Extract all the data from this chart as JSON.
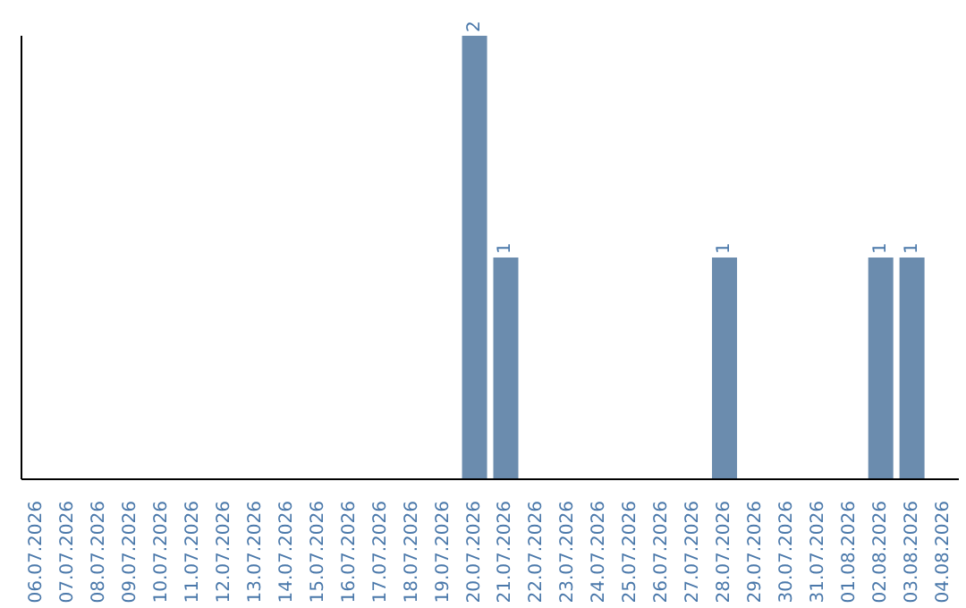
{
  "chart_data": {
    "type": "bar",
    "categories": [
      "06.07.2026",
      "07.07.2026",
      "08.07.2026",
      "09.07.2026",
      "10.07.2026",
      "11.07.2026",
      "12.07.2026",
      "13.07.2026",
      "14.07.2026",
      "15.07.2026",
      "16.07.2026",
      "17.07.2026",
      "18.07.2026",
      "19.07.2026",
      "20.07.2026",
      "21.07.2026",
      "22.07.2026",
      "23.07.2026",
      "24.07.2026",
      "25.07.2026",
      "26.07.2026",
      "27.07.2026",
      "28.07.2026",
      "29.07.2026",
      "30.07.2026",
      "31.07.2026",
      "01.08.2026",
      "02.08.2026",
      "03.08.2026",
      "04.08.2026"
    ],
    "values": [
      null,
      null,
      null,
      null,
      null,
      null,
      null,
      null,
      null,
      null,
      null,
      null,
      null,
      null,
      2,
      1,
      null,
      null,
      null,
      null,
      null,
      null,
      1,
      null,
      null,
      null,
      null,
      1,
      1,
      null
    ],
    "color": "#6b8cae",
    "data_labels": true,
    "legend": false,
    "grid": false
  }
}
